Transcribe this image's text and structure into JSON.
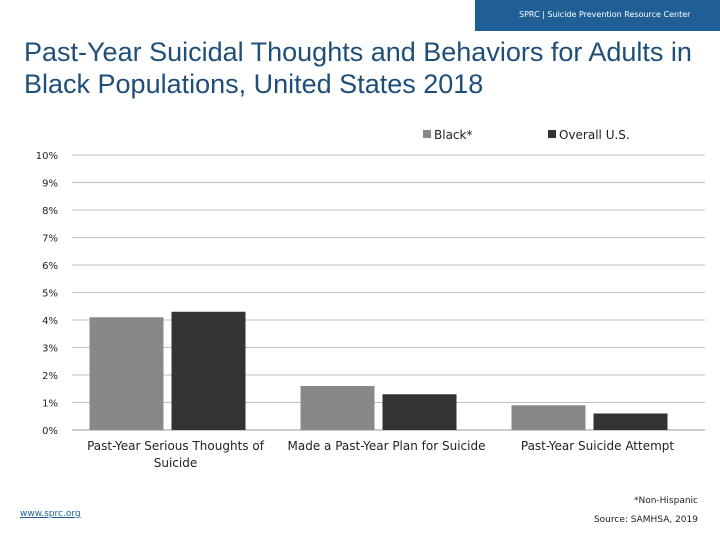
{
  "header": {
    "org": "SPRC  |  Suicide Prevention Resource Center"
  },
  "title": "Past-Year Suicidal Thoughts and Behaviors for Adults in Black Populations, United States 2018",
  "footer": {
    "link": "www.sprc.org",
    "note": "*Non-Hispanic",
    "source": "Source: SAMHSA, 2019"
  },
  "colors": {
    "black_series": "#888888",
    "overall_series": "#333333",
    "brand": "#1f4e79"
  },
  "chart_data": {
    "type": "bar",
    "title": "",
    "xlabel": "",
    "ylabel": "",
    "categories": [
      [
        "Past-Year Serious Thoughts of",
        "Suicide"
      ],
      [
        "Made a Past-Year Plan for Suicide"
      ],
      [
        "Past-Year Suicide Attempt"
      ]
    ],
    "series": [
      {
        "name": "Black*",
        "values": [
          4.1,
          1.6,
          0.9
        ]
      },
      {
        "name": "Overall U.S.",
        "values": [
          4.3,
          1.3,
          0.6
        ]
      }
    ],
    "ylim": [
      0,
      10
    ],
    "yticks": [
      "0%",
      "1%",
      "2%",
      "3%",
      "4%",
      "5%",
      "6%",
      "7%",
      "8%",
      "9%",
      "10%"
    ],
    "grid": true,
    "legend": "top-right"
  }
}
